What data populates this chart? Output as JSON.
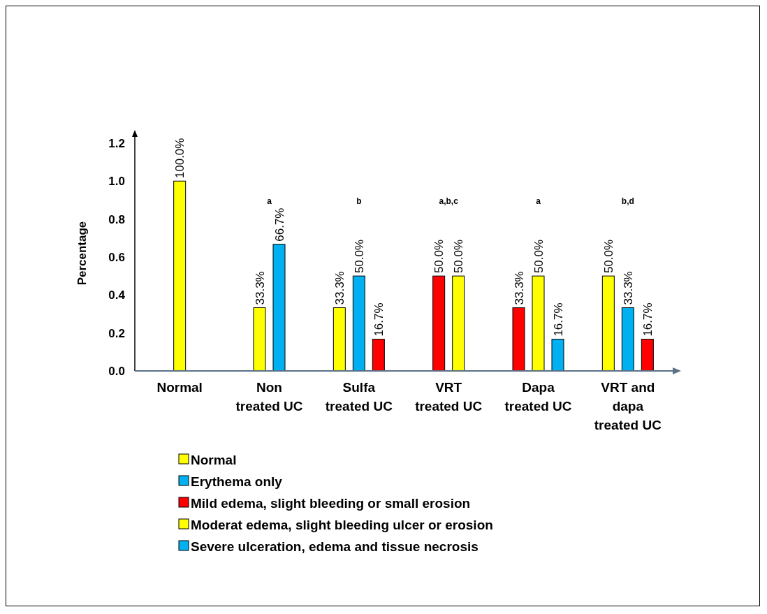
{
  "chart_data": {
    "type": "bar",
    "ylabel": "Percentage",
    "categories": [
      "Normal",
      "Non treated UC",
      "Sulfa treated UC",
      "VRT treated UC",
      "Dapa treated UC",
      "VRT and dapa treated UC"
    ],
    "series": [
      {
        "name": "Normal",
        "color": "#ffff00",
        "values": [
          1.0,
          null,
          0.333,
          null,
          null,
          0.5
        ],
        "value_labels": [
          "100.0%",
          null,
          "33.3%",
          null,
          null,
          "50.0%"
        ]
      },
      {
        "name": "Erythema only",
        "color": "#00b0f0",
        "values": [
          null,
          null,
          0.5,
          null,
          null,
          0.333
        ],
        "value_labels": [
          null,
          null,
          "50.0%",
          null,
          null,
          "33.3%"
        ]
      },
      {
        "name": "Mild edema, slight bleeding or small erosion",
        "color": "#ff0000",
        "values": [
          null,
          null,
          0.167,
          0.5,
          0.333,
          0.167
        ],
        "value_labels": [
          null,
          null,
          "16.7%",
          "50.0%",
          "33.3%",
          "16.7%"
        ]
      },
      {
        "name": "Moderat edema, slight bleeding ulcer or erosion",
        "color": "#ffff00",
        "values": [
          null,
          0.333,
          null,
          0.5,
          0.5,
          null
        ],
        "value_labels": [
          null,
          "33.3%",
          null,
          "50.0%",
          "50.0%",
          null
        ]
      },
      {
        "name": "Severe ulceration, edema and tissue necrosis",
        "color": "#00b0f0",
        "values": [
          null,
          0.667,
          null,
          null,
          0.167,
          null
        ],
        "value_labels": [
          null,
          "66.7%",
          null,
          null,
          "16.7%",
          null
        ]
      }
    ],
    "ylim": [
      0,
      1.24
    ],
    "yticks": [
      {
        "value": 0,
        "label": "0.0"
      },
      {
        "value": 0.2,
        "label": "0.2"
      },
      {
        "value": 0.4,
        "label": "0.4"
      },
      {
        "value": 0.6,
        "label": "0.6"
      },
      {
        "value": 0.8,
        "label": "0.8"
      },
      {
        "value": 1.0,
        "label": "1.0"
      },
      {
        "value": 1.2,
        "label": "1.2"
      }
    ],
    "annotations": [
      "a",
      "b",
      "a,b,c",
      "a",
      "b,d"
    ],
    "legend": "bottom",
    "grid": false
  }
}
